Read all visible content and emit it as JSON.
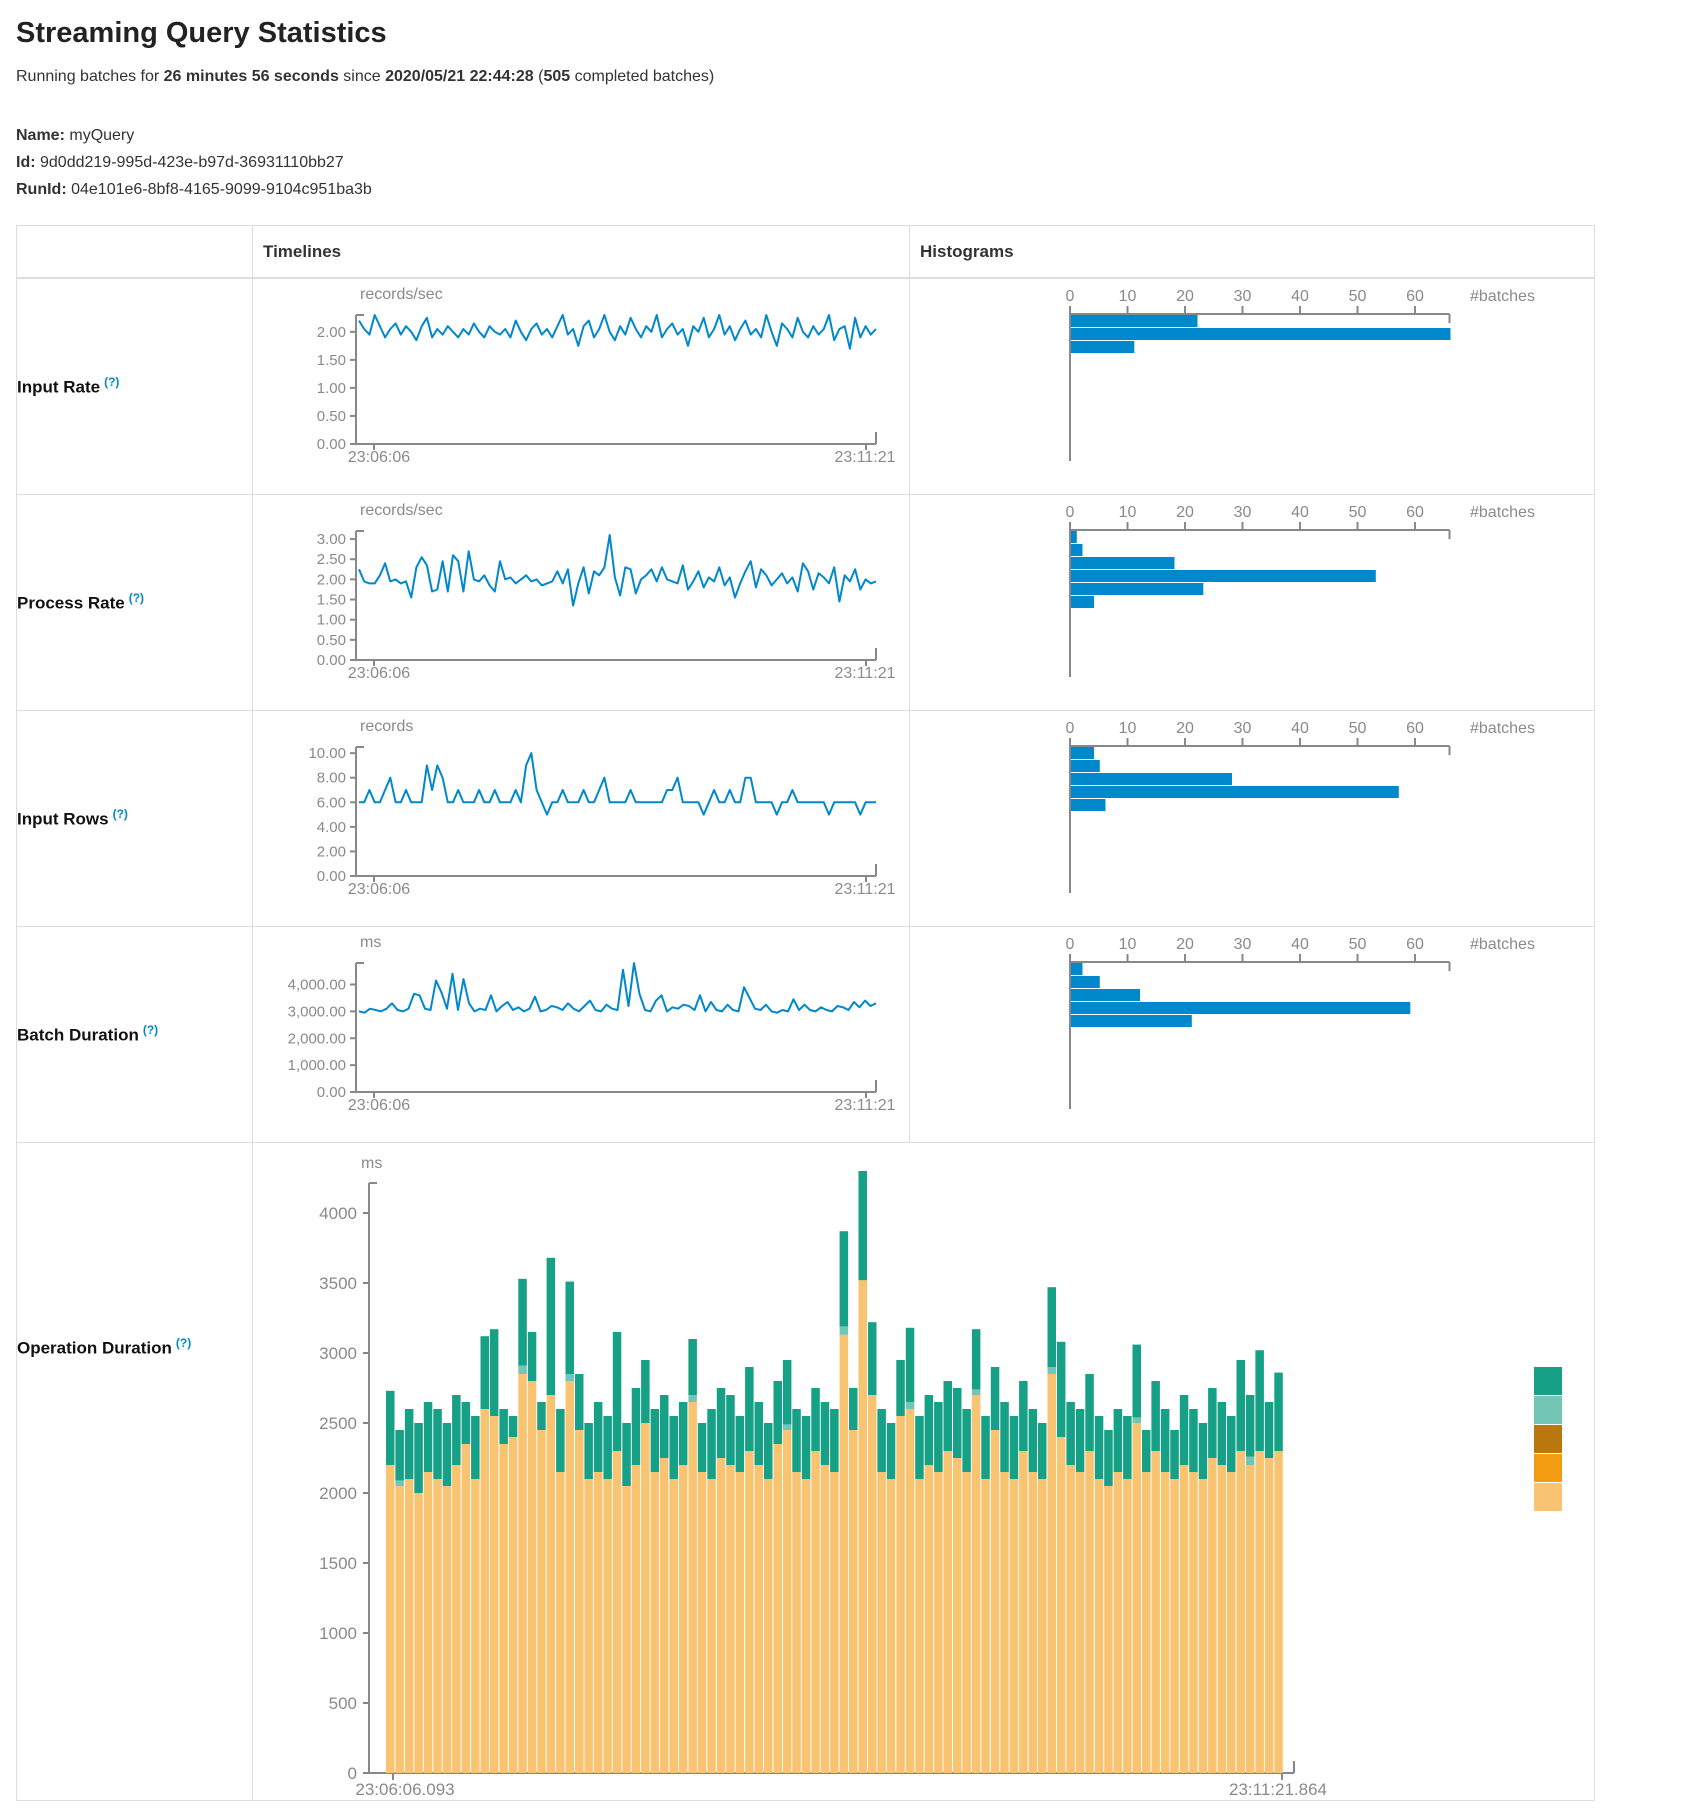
{
  "page": {
    "title": "Streaming Query Statistics",
    "running_prefix": "Running batches for ",
    "running_duration": "26 minutes 56 seconds",
    "running_since": " since ",
    "running_start": "2020/05/21 22:44:28",
    "running_paren": " (",
    "running_batches": "505",
    "running_suffix": " completed batches)",
    "name_label": "Name:",
    "name_value": "myQuery",
    "id_label": "Id:",
    "id_value": "9d0dd219-995d-423e-b97d-36931110bb27",
    "runid_label": "RunId:",
    "runid_value": "04e101e6-8bf8-4165-9099-9104c951ba3b"
  },
  "table": {
    "header_timelines": "Timelines",
    "header_histograms": "Histograms",
    "rows": [
      {
        "label": "Input Rate",
        "help": "(?)"
      },
      {
        "label": "Process Rate",
        "help": "(?)"
      },
      {
        "label": "Input Rows",
        "help": "(?)"
      },
      {
        "label": "Batch Duration",
        "help": "(?)"
      },
      {
        "label": "Operation Duration",
        "help": "(?)"
      }
    ]
  },
  "colors": {
    "line_blue": "#0088cc",
    "axis_gray": "#888888",
    "tick_text_gray": "#8a8a8a"
  },
  "chart_data": [
    {
      "id": "input-rate-timeline",
      "type": "line",
      "row": "Input Rate",
      "unit": "records/sec",
      "color": "#0088cc",
      "x_start_label": "23:06:06",
      "x_end_label": "23:11:21",
      "y_ticks": [
        0,
        0.5,
        1,
        1.5,
        2
      ],
      "y_tick_labels": [
        "0.00",
        "0.50",
        "1.00",
        "1.50",
        "2.00"
      ],
      "y_axis_max": 2.3,
      "values": [
        2.2,
        2.05,
        1.95,
        2.3,
        2.1,
        1.9,
        2.05,
        2.15,
        1.95,
        2.1,
        2.0,
        1.85,
        2.1,
        2.25,
        1.9,
        2.05,
        1.95,
        2.1,
        2.0,
        1.9,
        2.05,
        1.95,
        2.15,
        2.0,
        1.9,
        2.1,
        2.0,
        1.95,
        2.05,
        1.9,
        2.2,
        2.0,
        1.85,
        2.05,
        2.15,
        1.95,
        2.05,
        1.9,
        2.1,
        2.3,
        1.95,
        2.05,
        1.75,
        2.1,
        2.2,
        1.9,
        2.05,
        2.3,
        2.0,
        1.85,
        2.1,
        1.95,
        2.25,
        2.05,
        1.9,
        2.1,
        2.0,
        2.3,
        1.9,
        2.05,
        2.15,
        1.95,
        2.05,
        1.75,
        2.1,
        2.0,
        2.25,
        1.9,
        2.05,
        2.3,
        1.95,
        2.1,
        1.85,
        2.05,
        2.2,
        1.95,
        2.05,
        1.9,
        2.3,
        2.0,
        1.75,
        2.15,
        2.05,
        1.9,
        2.25,
        2.0,
        1.9,
        2.1,
        1.95,
        2.05,
        2.3,
        1.85,
        2.05,
        2.1,
        1.7,
        2.25,
        1.9,
        2.1,
        1.95,
        2.05
      ]
    },
    {
      "id": "input-rate-histogram",
      "type": "bar",
      "row": "Input Rate",
      "end_label": "#batches",
      "color": "#0088cc",
      "x_ticks": [
        0,
        10,
        20,
        30,
        40,
        50,
        60
      ],
      "x_axis_max": 66,
      "values": [
        22,
        66,
        11
      ]
    },
    {
      "id": "process-rate-timeline",
      "type": "line",
      "row": "Process Rate",
      "unit": "records/sec",
      "color": "#0088cc",
      "x_start_label": "23:06:06",
      "x_end_label": "23:11:21",
      "y_ticks": [
        0,
        0.5,
        1,
        1.5,
        2,
        2.5,
        3
      ],
      "y_tick_labels": [
        "0.00",
        "0.50",
        "1.00",
        "1.50",
        "2.00",
        "2.50",
        "3.00"
      ],
      "y_axis_max": 3.2,
      "values": [
        2.25,
        1.95,
        1.9,
        1.9,
        2.1,
        2.4,
        1.95,
        2.0,
        1.9,
        1.95,
        1.55,
        2.3,
        2.55,
        2.35,
        1.7,
        1.75,
        2.45,
        1.7,
        2.6,
        2.45,
        1.7,
        2.7,
        2.0,
        1.95,
        2.1,
        1.85,
        1.7,
        2.45,
        2.0,
        2.05,
        1.9,
        2.0,
        2.1,
        1.95,
        2.0,
        1.85,
        1.9,
        1.95,
        2.2,
        1.9,
        2.25,
        1.35,
        1.9,
        2.3,
        1.65,
        2.2,
        2.1,
        2.3,
        3.1,
        2.05,
        1.6,
        2.3,
        2.25,
        1.65,
        2.0,
        2.1,
        2.25,
        1.95,
        2.3,
        2.0,
        1.95,
        1.9,
        2.35,
        1.75,
        1.95,
        2.2,
        1.8,
        2.05,
        1.95,
        2.3,
        1.85,
        2.05,
        1.55,
        1.9,
        2.2,
        2.45,
        1.8,
        2.25,
        2.1,
        1.85,
        2.0,
        2.15,
        1.9,
        2.05,
        1.7,
        2.4,
        2.2,
        1.75,
        2.15,
        2.05,
        1.9,
        2.3,
        1.45,
        2.1,
        1.95,
        2.25,
        1.75,
        2.0,
        1.9,
        1.95
      ]
    },
    {
      "id": "process-rate-histogram",
      "type": "bar",
      "row": "Process Rate",
      "end_label": "#batches",
      "color": "#0088cc",
      "x_ticks": [
        0,
        10,
        20,
        30,
        40,
        50,
        60
      ],
      "x_axis_max": 66,
      "values": [
        1,
        2,
        18,
        53,
        23,
        4
      ]
    },
    {
      "id": "input-rows-timeline",
      "type": "line",
      "row": "Input Rows",
      "unit": "records",
      "color": "#0088cc",
      "x_start_label": "23:06:06",
      "x_end_label": "23:11:21",
      "y_ticks": [
        0,
        2,
        4,
        6,
        8,
        10
      ],
      "y_tick_labels": [
        "0.00",
        "2.00",
        "4.00",
        "6.00",
        "8.00",
        "10.00"
      ],
      "y_axis_max": 10.5,
      "values": [
        6,
        6,
        7,
        6,
        6,
        7,
        8,
        6,
        6,
        7,
        6,
        6,
        6,
        9,
        7,
        9,
        8,
        6,
        6,
        7,
        6,
        6,
        6,
        7,
        6,
        6,
        7,
        6,
        6,
        6,
        7,
        6,
        9,
        10,
        7,
        6,
        5,
        6,
        6,
        7,
        6,
        6,
        6,
        7,
        6,
        6,
        7,
        8,
        6,
        6,
        6,
        6,
        7,
        6,
        6,
        6,
        6,
        6,
        6,
        7,
        7,
        8,
        6,
        6,
        6,
        6,
        5,
        6,
        7,
        6,
        6,
        7,
        6,
        6,
        8,
        8,
        6,
        6,
        6,
        6,
        5,
        6,
        6,
        7,
        6,
        6,
        6,
        6,
        6,
        6,
        5,
        6,
        6,
        6,
        6,
        6,
        5,
        6,
        6,
        6
      ]
    },
    {
      "id": "input-rows-histogram",
      "type": "bar",
      "row": "Input Rows",
      "end_label": "#batches",
      "color": "#0088cc",
      "x_ticks": [
        0,
        10,
        20,
        30,
        40,
        50,
        60
      ],
      "x_axis_max": 66,
      "values": [
        4,
        5,
        28,
        57,
        6
      ]
    },
    {
      "id": "batch-duration-timeline",
      "type": "line",
      "row": "Batch Duration",
      "unit": "ms",
      "color": "#0088cc",
      "x_start_label": "23:06:06",
      "x_end_label": "23:11:21",
      "y_ticks": [
        0,
        1000,
        2000,
        3000,
        4000
      ],
      "y_tick_labels": [
        "0.00",
        "1,000.00",
        "2,000.00",
        "3,000.00",
        "4,000.00"
      ],
      "y_axis_max": 4800,
      "values": [
        3000,
        2950,
        3100,
        3050,
        3000,
        3100,
        3300,
        3050,
        3000,
        3100,
        3650,
        3600,
        3100,
        3050,
        4150,
        3700,
        3100,
        4400,
        3050,
        4200,
        3300,
        3000,
        3100,
        3050,
        3600,
        3000,
        3200,
        3350,
        3050,
        3150,
        3000,
        3100,
        3550,
        3000,
        3050,
        3200,
        3150,
        3050,
        3300,
        3100,
        3000,
        3200,
        3400,
        3050,
        3000,
        3250,
        3100,
        3050,
        4550,
        3200,
        4800,
        3650,
        3050,
        3000,
        3400,
        3600,
        3000,
        3150,
        3100,
        3250,
        3200,
        3050,
        3600,
        3000,
        3350,
        3050,
        3000,
        3250,
        3050,
        3000,
        3900,
        3500,
        3100,
        3050,
        3250,
        3000,
        2950,
        3050,
        3000,
        3450,
        3050,
        3250,
        3050,
        3000,
        3150,
        3050,
        3000,
        3200,
        3150,
        3050,
        3350,
        3150,
        3400,
        3200,
        3300
      ]
    },
    {
      "id": "batch-duration-histogram",
      "type": "bar",
      "row": "Batch Duration",
      "end_label": "#batches",
      "color": "#0088cc",
      "x_ticks": [
        0,
        10,
        20,
        30,
        40,
        50,
        60
      ],
      "x_axis_max": 66,
      "values": [
        2,
        5,
        12,
        59,
        21
      ]
    },
    {
      "id": "operation-duration-chart",
      "type": "stacked-bar",
      "row": "Operation Duration",
      "unit": "ms",
      "x_start_label": "23:06:06.093",
      "x_end_label": "23:11:21.864",
      "y_ticks": [
        0,
        500,
        1000,
        1500,
        2000,
        2500,
        3000,
        3500,
        4000
      ],
      "y_tick_labels": [
        "0",
        "500",
        "1000",
        "1500",
        "2000",
        "2500",
        "3000",
        "3500",
        "4000"
      ],
      "y_axis_max": 4000,
      "legend_colors": [
        "#16A085",
        "#73C6B6",
        "#B9770E",
        "#F39C12",
        "#F8C471"
      ],
      "series": [
        {
          "name": "segment-light-orange",
          "color": "#F8C471",
          "values": [
            2200,
            2050,
            2100,
            2000,
            2150,
            2100,
            2050,
            2200,
            2350,
            2100,
            2600,
            2550,
            2350,
            2400,
            2850,
            2800,
            2450,
            2700,
            2150,
            2800,
            2450,
            2100,
            2150,
            2100,
            2300,
            2050,
            2200,
            2500,
            2150,
            2250,
            2100,
            2200,
            2650,
            2150,
            2100,
            2250,
            2200,
            2150,
            2300,
            2200,
            2100,
            2350,
            2450,
            2150,
            2100,
            2300,
            2200,
            2150,
            3130,
            2450,
            3520,
            2700,
            2150,
            2100,
            2550,
            2600,
            2100,
            2200,
            2150,
            2300,
            2250,
            2150,
            2700,
            2100,
            2450,
            2150,
            2100,
            2300,
            2150,
            2100,
            2850,
            2400,
            2200,
            2150,
            2300,
            2100,
            2050,
            2150,
            2100,
            2500,
            2150,
            2300,
            2150,
            2100,
            2200,
            2150,
            2100,
            2250,
            2200,
            2150,
            2300,
            2200,
            2300,
            2250,
            2300
          ]
        },
        {
          "name": "segment-orange",
          "color": "#F39C12",
          "values": []
        },
        {
          "name": "segment-dark-yellow",
          "color": "#B9770E",
          "values": []
        },
        {
          "name": "segment-light-teal",
          "color": "#73C6B6",
          "values": [
            0,
            40,
            0,
            0,
            0,
            0,
            0,
            0,
            0,
            0,
            0,
            0,
            0,
            0,
            60,
            0,
            0,
            0,
            0,
            50,
            0,
            0,
            0,
            0,
            0,
            0,
            0,
            0,
            0,
            0,
            0,
            0,
            50,
            0,
            0,
            0,
            0,
            0,
            0,
            0,
            0,
            0,
            40,
            0,
            0,
            0,
            0,
            0,
            60,
            0,
            0,
            0,
            0,
            0,
            0,
            50,
            0,
            0,
            0,
            0,
            0,
            0,
            40,
            0,
            0,
            0,
            0,
            0,
            0,
            0,
            50,
            0,
            0,
            0,
            0,
            0,
            0,
            0,
            0,
            40,
            0,
            0,
            0,
            0,
            0,
            0,
            0,
            0,
            0,
            0,
            0,
            60,
            0,
            0,
            0
          ]
        },
        {
          "name": "segment-green",
          "color": "#16A085",
          "values": [
            530,
            360,
            500,
            500,
            500,
            500,
            450,
            500,
            300,
            450,
            520,
            620,
            250,
            150,
            620,
            350,
            200,
            980,
            450,
            660,
            400,
            400,
            500,
            450,
            850,
            450,
            550,
            450,
            450,
            450,
            450,
            450,
            400,
            350,
            500,
            500,
            500,
            400,
            600,
            450,
            400,
            450,
            460,
            450,
            450,
            450,
            450,
            450,
            680,
            300,
            780,
            520,
            450,
            400,
            400,
            530,
            450,
            500,
            500,
            500,
            500,
            450,
            430,
            450,
            450,
            500,
            450,
            500,
            450,
            400,
            570,
            680,
            450,
            450,
            550,
            450,
            400,
            450,
            450,
            520,
            300,
            500,
            450,
            350,
            500,
            450,
            400,
            500,
            450,
            400,
            650,
            440,
            720,
            400,
            560
          ]
        }
      ]
    }
  ]
}
